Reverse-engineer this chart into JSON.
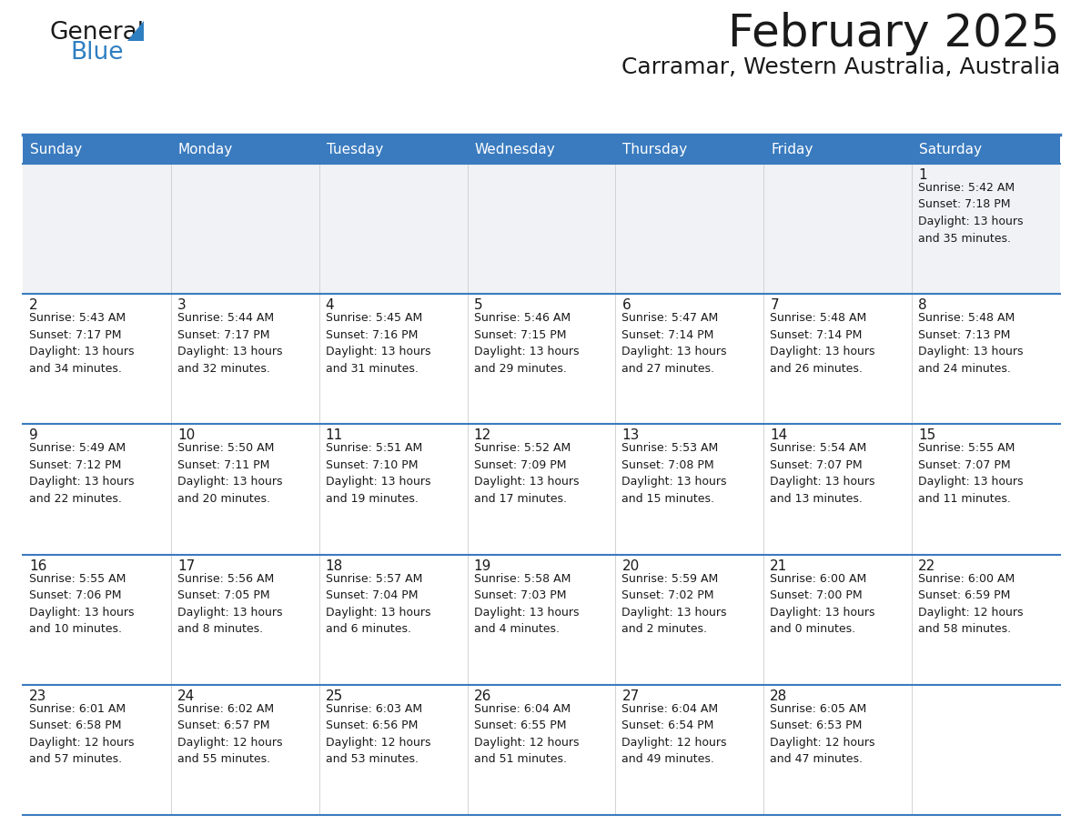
{
  "title": "February 2025",
  "subtitle": "Carramar, Western Australia, Australia",
  "header_bg_color": "#3a7bbf",
  "header_text_color": "#ffffff",
  "cell_bg_white": "#ffffff",
  "cell_bg_gray": "#f0f2f5",
  "border_color": "#3a7bbf",
  "text_color": "#1a1a1a",
  "logo_text1": "General",
  "logo_text2": "Blue",
  "logo_color1": "#1a1a1a",
  "logo_color2": "#2e7fc1",
  "day_headers": [
    "Sunday",
    "Monday",
    "Tuesday",
    "Wednesday",
    "Thursday",
    "Friday",
    "Saturday"
  ],
  "title_fontsize": 36,
  "subtitle_fontsize": 18,
  "header_fontsize": 11,
  "day_num_fontsize": 11,
  "info_fontsize": 9,
  "calendar_data": [
    [
      {
        "day": "",
        "info": ""
      },
      {
        "day": "",
        "info": ""
      },
      {
        "day": "",
        "info": ""
      },
      {
        "day": "",
        "info": ""
      },
      {
        "day": "",
        "info": ""
      },
      {
        "day": "",
        "info": ""
      },
      {
        "day": "1",
        "info": "Sunrise: 5:42 AM\nSunset: 7:18 PM\nDaylight: 13 hours\nand 35 minutes."
      }
    ],
    [
      {
        "day": "2",
        "info": "Sunrise: 5:43 AM\nSunset: 7:17 PM\nDaylight: 13 hours\nand 34 minutes."
      },
      {
        "day": "3",
        "info": "Sunrise: 5:44 AM\nSunset: 7:17 PM\nDaylight: 13 hours\nand 32 minutes."
      },
      {
        "day": "4",
        "info": "Sunrise: 5:45 AM\nSunset: 7:16 PM\nDaylight: 13 hours\nand 31 minutes."
      },
      {
        "day": "5",
        "info": "Sunrise: 5:46 AM\nSunset: 7:15 PM\nDaylight: 13 hours\nand 29 minutes."
      },
      {
        "day": "6",
        "info": "Sunrise: 5:47 AM\nSunset: 7:14 PM\nDaylight: 13 hours\nand 27 minutes."
      },
      {
        "day": "7",
        "info": "Sunrise: 5:48 AM\nSunset: 7:14 PM\nDaylight: 13 hours\nand 26 minutes."
      },
      {
        "day": "8",
        "info": "Sunrise: 5:48 AM\nSunset: 7:13 PM\nDaylight: 13 hours\nand 24 minutes."
      }
    ],
    [
      {
        "day": "9",
        "info": "Sunrise: 5:49 AM\nSunset: 7:12 PM\nDaylight: 13 hours\nand 22 minutes."
      },
      {
        "day": "10",
        "info": "Sunrise: 5:50 AM\nSunset: 7:11 PM\nDaylight: 13 hours\nand 20 minutes."
      },
      {
        "day": "11",
        "info": "Sunrise: 5:51 AM\nSunset: 7:10 PM\nDaylight: 13 hours\nand 19 minutes."
      },
      {
        "day": "12",
        "info": "Sunrise: 5:52 AM\nSunset: 7:09 PM\nDaylight: 13 hours\nand 17 minutes."
      },
      {
        "day": "13",
        "info": "Sunrise: 5:53 AM\nSunset: 7:08 PM\nDaylight: 13 hours\nand 15 minutes."
      },
      {
        "day": "14",
        "info": "Sunrise: 5:54 AM\nSunset: 7:07 PM\nDaylight: 13 hours\nand 13 minutes."
      },
      {
        "day": "15",
        "info": "Sunrise: 5:55 AM\nSunset: 7:07 PM\nDaylight: 13 hours\nand 11 minutes."
      }
    ],
    [
      {
        "day": "16",
        "info": "Sunrise: 5:55 AM\nSunset: 7:06 PM\nDaylight: 13 hours\nand 10 minutes."
      },
      {
        "day": "17",
        "info": "Sunrise: 5:56 AM\nSunset: 7:05 PM\nDaylight: 13 hours\nand 8 minutes."
      },
      {
        "day": "18",
        "info": "Sunrise: 5:57 AM\nSunset: 7:04 PM\nDaylight: 13 hours\nand 6 minutes."
      },
      {
        "day": "19",
        "info": "Sunrise: 5:58 AM\nSunset: 7:03 PM\nDaylight: 13 hours\nand 4 minutes."
      },
      {
        "day": "20",
        "info": "Sunrise: 5:59 AM\nSunset: 7:02 PM\nDaylight: 13 hours\nand 2 minutes."
      },
      {
        "day": "21",
        "info": "Sunrise: 6:00 AM\nSunset: 7:00 PM\nDaylight: 13 hours\nand 0 minutes."
      },
      {
        "day": "22",
        "info": "Sunrise: 6:00 AM\nSunset: 6:59 PM\nDaylight: 12 hours\nand 58 minutes."
      }
    ],
    [
      {
        "day": "23",
        "info": "Sunrise: 6:01 AM\nSunset: 6:58 PM\nDaylight: 12 hours\nand 57 minutes."
      },
      {
        "day": "24",
        "info": "Sunrise: 6:02 AM\nSunset: 6:57 PM\nDaylight: 12 hours\nand 55 minutes."
      },
      {
        "day": "25",
        "info": "Sunrise: 6:03 AM\nSunset: 6:56 PM\nDaylight: 12 hours\nand 53 minutes."
      },
      {
        "day": "26",
        "info": "Sunrise: 6:04 AM\nSunset: 6:55 PM\nDaylight: 12 hours\nand 51 minutes."
      },
      {
        "day": "27",
        "info": "Sunrise: 6:04 AM\nSunset: 6:54 PM\nDaylight: 12 hours\nand 49 minutes."
      },
      {
        "day": "28",
        "info": "Sunrise: 6:05 AM\nSunset: 6:53 PM\nDaylight: 12 hours\nand 47 minutes."
      },
      {
        "day": "",
        "info": ""
      }
    ]
  ]
}
